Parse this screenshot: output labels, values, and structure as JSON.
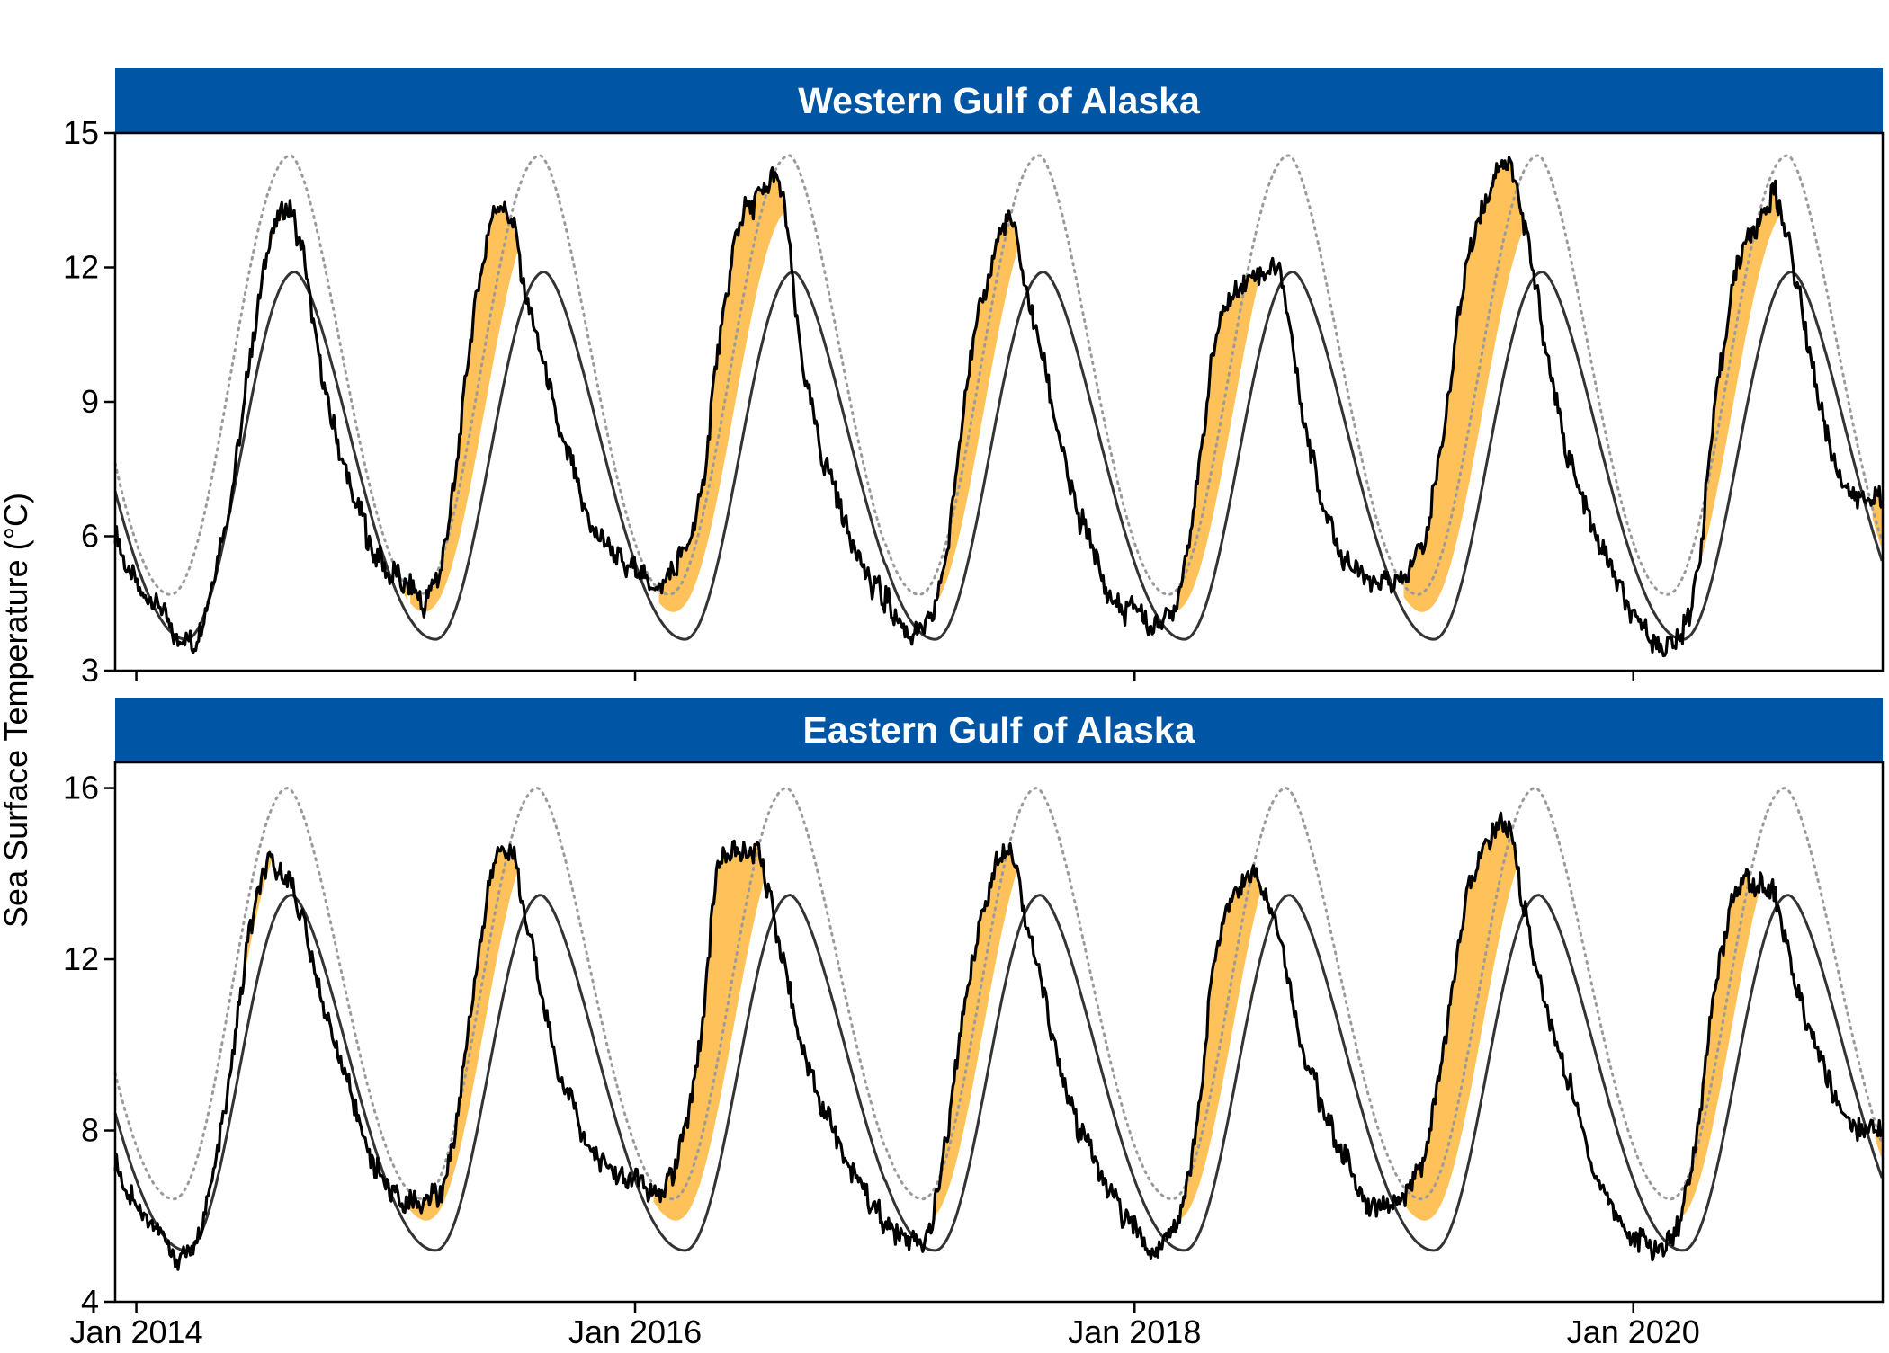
{
  "ylabel": "Sea Surface Temperature (°C)",
  "colors": {
    "strip": "#0055A4",
    "heatwave_fill": "#FFC25A",
    "observed": "#000000",
    "climatology": "#333333",
    "threshold": "#9a9a9a",
    "frame": "#000000"
  },
  "chart_data": [
    {
      "type": "line",
      "title": "Western Gulf of Alaska",
      "xlabel": "",
      "ylabel": "Sea Surface Temperature (°C)",
      "x_ticks": [
        "Jan 2014",
        "Jan 2016",
        "Jan 2018",
        "Jan 2020"
      ],
      "xlim": [
        "2013-12-01",
        "2020-12-31"
      ],
      "ylim": [
        3,
        15
      ],
      "y_ticks": [
        3,
        6,
        9,
        12,
        15
      ],
      "climatology": {
        "min": 3.7,
        "max": 11.9,
        "min_day": 73,
        "max_day": 232
      },
      "threshold": {
        "min": 4.7,
        "max": 14.5,
        "min_day": 50,
        "max_day": 226
      },
      "series": [
        {
          "style": "observed",
          "x": [
            "2013-12-01",
            "2014-01-01",
            "2014-02-01",
            "2014-03-01",
            "2014-04-01",
            "2014-05-01",
            "2014-06-01",
            "2014-07-01",
            "2014-08-01",
            "2014-09-01",
            "2014-10-01",
            "2014-11-01",
            "2014-12-01",
            "2015-01-01",
            "2015-02-01",
            "2015-03-01",
            "2015-04-01",
            "2015-05-01",
            "2015-06-01",
            "2015-07-01",
            "2015-08-01",
            "2015-09-01",
            "2015-10-01",
            "2015-11-01",
            "2015-12-01",
            "2016-01-01",
            "2016-02-01",
            "2016-03-01",
            "2016-04-01",
            "2016-05-01",
            "2016-06-01",
            "2016-07-01",
            "2016-08-01",
            "2016-09-01",
            "2016-10-01",
            "2016-11-01",
            "2016-12-01",
            "2017-01-01",
            "2017-02-01",
            "2017-03-01",
            "2017-04-01",
            "2017-05-01",
            "2017-06-01",
            "2017-07-01",
            "2017-08-01",
            "2017-09-01",
            "2017-10-01",
            "2017-11-01",
            "2017-12-01",
            "2018-01-01",
            "2018-02-01",
            "2018-03-01",
            "2018-04-01",
            "2018-05-01",
            "2018-06-01",
            "2018-07-01",
            "2018-08-01",
            "2018-09-01",
            "2018-10-01",
            "2018-11-01",
            "2018-12-01",
            "2019-01-01",
            "2019-02-01",
            "2019-03-01",
            "2019-04-01",
            "2019-05-01",
            "2019-06-01",
            "2019-07-01",
            "2019-08-01",
            "2019-09-01",
            "2019-10-01",
            "2019-11-01",
            "2019-12-01",
            "2020-01-01",
            "2020-02-01",
            "2020-03-01",
            "2020-04-01",
            "2020-05-01",
            "2020-06-01",
            "2020-07-01",
            "2020-08-01",
            "2020-09-01",
            "2020-10-01",
            "2020-11-01",
            "2020-12-01"
          ],
          "values": [
            6.0,
            4.9,
            4.6,
            3.7,
            3.8,
            5.5,
            8.2,
            11.5,
            13.2,
            12.4,
            9.5,
            7.5,
            6.2,
            5.3,
            4.9,
            4.6,
            6.0,
            9.8,
            12.8,
            13.1,
            11.0,
            9.0,
            7.5,
            6.2,
            5.6,
            5.2,
            4.9,
            5.3,
            6.5,
            10.0,
            13.0,
            13.5,
            13.8,
            10.0,
            7.8,
            6.5,
            5.2,
            4.6,
            3.9,
            4.0,
            5.6,
            9.5,
            11.8,
            13.0,
            11.2,
            9.0,
            7.0,
            5.6,
            4.6,
            4.3,
            4.1,
            4.5,
            7.0,
            10.5,
            11.6,
            11.8,
            11.9,
            9.0,
            7.0,
            5.6,
            5.1,
            4.9,
            5.1,
            6.0,
            8.5,
            12.0,
            13.5,
            14.3,
            12.4,
            9.6,
            7.6,
            6.3,
            5.2,
            4.2,
            3.7,
            3.6,
            5.0,
            8.9,
            12.0,
            12.9,
            13.5,
            11.3,
            8.8,
            7.4,
            6.8
          ]
        }
      ]
    },
    {
      "type": "line",
      "title": "Eastern Gulf of Alaska",
      "xlabel": "",
      "ylabel": "Sea Surface Temperature (°C)",
      "x_ticks": [
        "Jan 2014",
        "Jan 2016",
        "Jan 2018",
        "Jan 2020"
      ],
      "xlim": [
        "2013-12-01",
        "2020-12-31"
      ],
      "ylim": [
        4,
        16.6
      ],
      "y_ticks": [
        4,
        8,
        12,
        16
      ],
      "climatology": {
        "min": 5.2,
        "max": 13.5,
        "min_day": 73,
        "max_day": 227
      },
      "threshold": {
        "min": 6.4,
        "max": 16.0,
        "min_day": 55,
        "max_day": 222
      },
      "series": [
        {
          "style": "observed",
          "x": [
            "2013-12-01",
            "2014-01-01",
            "2014-02-01",
            "2014-03-01",
            "2014-04-01",
            "2014-05-01",
            "2014-06-01",
            "2014-07-01",
            "2014-08-01",
            "2014-09-01",
            "2014-10-01",
            "2014-11-01",
            "2014-12-01",
            "2015-01-01",
            "2015-02-01",
            "2015-03-01",
            "2015-04-01",
            "2015-05-01",
            "2015-06-01",
            "2015-07-01",
            "2015-08-01",
            "2015-09-01",
            "2015-10-01",
            "2015-11-01",
            "2015-12-01",
            "2016-01-01",
            "2016-02-01",
            "2016-03-01",
            "2016-04-01",
            "2016-05-01",
            "2016-06-01",
            "2016-07-01",
            "2016-08-01",
            "2016-09-01",
            "2016-10-01",
            "2016-11-01",
            "2016-12-01",
            "2017-01-01",
            "2017-02-01",
            "2017-03-01",
            "2017-04-01",
            "2017-05-01",
            "2017-06-01",
            "2017-07-01",
            "2017-08-01",
            "2017-09-01",
            "2017-10-01",
            "2017-11-01",
            "2017-12-01",
            "2018-01-01",
            "2018-02-01",
            "2018-03-01",
            "2018-04-01",
            "2018-05-01",
            "2018-06-01",
            "2018-07-01",
            "2018-08-01",
            "2018-09-01",
            "2018-10-01",
            "2018-11-01",
            "2018-12-01",
            "2019-01-01",
            "2019-02-01",
            "2019-03-01",
            "2019-04-01",
            "2019-05-01",
            "2019-06-01",
            "2019-07-01",
            "2019-08-01",
            "2019-09-01",
            "2019-10-01",
            "2019-11-01",
            "2019-12-01",
            "2020-01-01",
            "2020-02-01",
            "2020-03-01",
            "2020-04-01",
            "2020-05-01",
            "2020-06-01",
            "2020-07-01",
            "2020-08-01",
            "2020-09-01",
            "2020-10-01",
            "2020-11-01",
            "2020-12-01"
          ],
          "values": [
            7.2,
            6.3,
            5.8,
            5.0,
            5.5,
            7.5,
            11.0,
            13.8,
            14.0,
            13.0,
            11.0,
            9.3,
            7.8,
            6.8,
            6.3,
            6.4,
            7.0,
            10.2,
            13.6,
            14.5,
            12.5,
            10.0,
            8.6,
            7.5,
            7.0,
            6.8,
            6.5,
            7.2,
            9.6,
            14.0,
            14.5,
            14.3,
            12.3,
            10.0,
            8.6,
            7.5,
            6.6,
            5.8,
            5.5,
            5.5,
            7.8,
            11.3,
            13.6,
            14.6,
            12.6,
            10.3,
            8.5,
            7.3,
            6.5,
            5.6,
            5.3,
            5.8,
            8.0,
            12.3,
            13.7,
            13.8,
            12.6,
            10.0,
            8.7,
            7.5,
            6.5,
            6.2,
            6.5,
            7.5,
            10.0,
            13.4,
            14.6,
            15.0,
            12.6,
            10.4,
            9.0,
            7.3,
            6.2,
            5.5,
            5.3,
            5.6,
            7.8,
            11.3,
            13.6,
            13.7,
            13.2,
            11.0,
            9.6,
            8.6,
            8.0
          ]
        }
      ]
    }
  ]
}
